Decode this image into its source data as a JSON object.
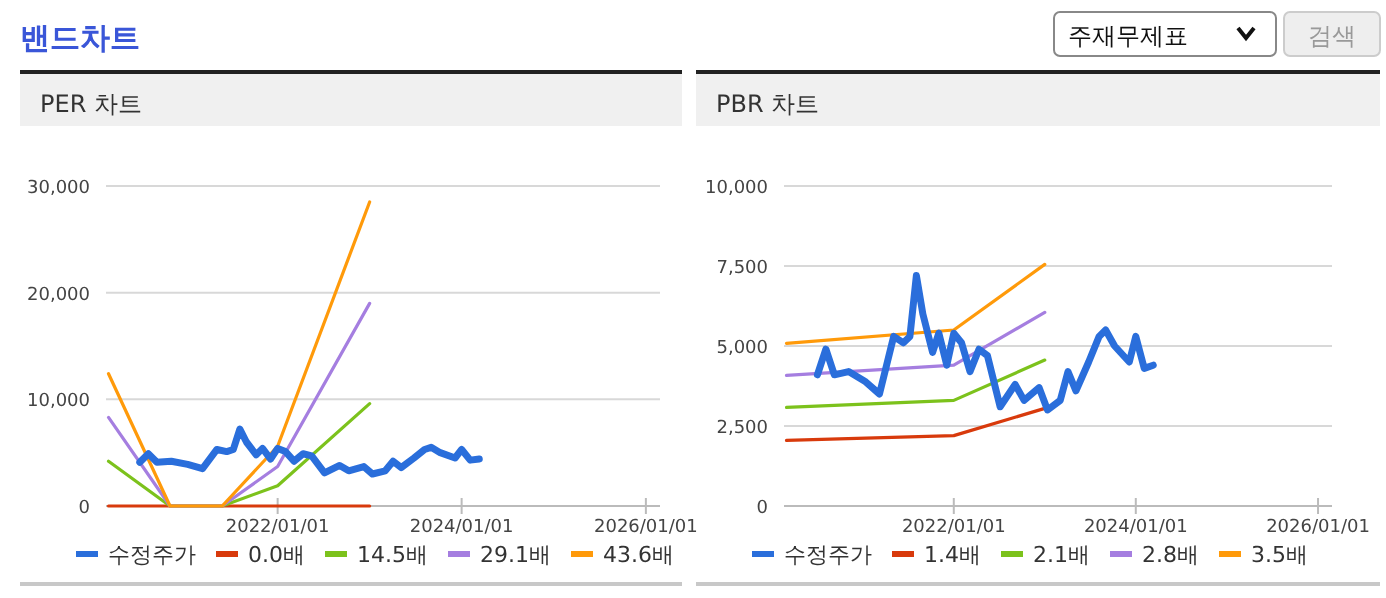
{
  "chart_data": [
    {
      "type": "other",
      "title": "밴드차트",
      "annotations": [
        "주재무제표",
        "검색"
      ]
    },
    {
      "type": "line",
      "title": "PER 차트",
      "xlim": [
        "2020-02-20",
        "2026-02-26"
      ],
      "xticks": [
        {
          "value": "2022-01-01",
          "label": "2022/01/01"
        },
        {
          "value": "2024-01-01",
          "label": "2024/01/01"
        },
        {
          "value": "2026-01-01",
          "label": "2026/01/01"
        }
      ],
      "ylim": [
        0,
        30000
      ],
      "yticks": [
        0,
        {
          "value": 10000,
          "label": "10,000"
        },
        {
          "value": 20000,
          "label": "20,000"
        },
        {
          "value": 30000,
          "label": "30,000"
        }
      ],
      "grid": "y",
      "legend": "bottom",
      "line_style": "solid",
      "marker": "none",
      "series": [
        {
          "name": "수정주가",
          "color": "#2a6edb",
          "x": [
            "2020-07-03",
            "2020-08-06",
            "2020-09-09",
            "2020-11-05",
            "2021-01-09",
            "2021-03-09",
            "2021-05-05",
            "2021-06-13",
            "2021-07-09",
            "2021-08-04",
            "2021-08-30",
            "2021-10-08",
            "2021-11-02",
            "2021-12-04",
            "2022-01-01",
            "2022-02-01",
            "2022-03-07",
            "2022-04-12",
            "2022-05-16",
            "2022-07-06",
            "2022-09-04",
            "2022-10-10",
            "2022-12-09",
            "2023-01-12",
            "2023-03-04",
            "2023-04-04",
            "2023-05-06",
            "2023-06-26",
            "2023-08-07",
            "2023-09-02",
            "2023-10-08",
            "2023-12-06",
            "2024-01-01",
            "2024-02-04",
            "2024-03-11"
          ],
          "values": [
            4100,
            4900,
            4100,
            4200,
            3900,
            3500,
            5300,
            5100,
            5300,
            7200,
            6000,
            4800,
            5400,
            4400,
            5400,
            5100,
            4200,
            4900,
            4700,
            3100,
            3800,
            3300,
            3700,
            3000,
            3300,
            4200,
            3600,
            4500,
            5300,
            5500,
            5000,
            4500,
            5300,
            4300,
            4400
          ]
        },
        {
          "name": "0.0배",
          "color": "#d83a0c",
          "x": [
            "2020-03-01",
            "2020-10-31",
            "2021-05-26",
            "2022-01-01",
            "2023-01-01"
          ],
          "values": [
            0,
            0,
            0,
            0,
            0
          ]
        },
        {
          "name": "14.5배",
          "color": "#7cc21c",
          "x": [
            "2020-03-01",
            "2020-10-31",
            "2021-05-26",
            "2022-01-01",
            "2023-01-01"
          ],
          "values": [
            4200,
            0,
            0,
            1900,
            9600
          ]
        },
        {
          "name": "29.1배",
          "color": "#a57ee0",
          "x": [
            "2020-03-01",
            "2020-10-31",
            "2021-05-26",
            "2022-01-01",
            "2023-01-01"
          ],
          "values": [
            8300,
            0,
            0,
            3700,
            19000
          ]
        },
        {
          "name": "43.6배",
          "color": "#ff9a0a",
          "x": [
            "2020-03-01",
            "2020-10-31",
            "2021-05-26",
            "2022-01-01",
            "2023-01-01"
          ],
          "values": [
            12400,
            0,
            0,
            5600,
            28500
          ]
        }
      ]
    },
    {
      "type": "line",
      "title": "PBR 차트",
      "xlim": [
        "2020-02-20",
        "2026-02-26"
      ],
      "xticks": [
        {
          "value": "2022-01-01",
          "label": "2022/01/01"
        },
        {
          "value": "2024-01-01",
          "label": "2024/01/01"
        },
        {
          "value": "2026-01-01",
          "label": "2026/01/01"
        }
      ],
      "ylim": [
        0,
        10000
      ],
      "yticks": [
        0,
        {
          "value": 2500,
          "label": "2,500"
        },
        {
          "value": 5000,
          "label": "5,000"
        },
        {
          "value": 7500,
          "label": "7,500"
        },
        {
          "value": 10000,
          "label": "10,000"
        }
      ],
      "grid": "y",
      "legend": "bottom",
      "line_style": "solid",
      "marker": "none",
      "series": [
        {
          "name": "수정주가",
          "color": "#2a6edb",
          "x": [
            "2020-07-03",
            "2020-08-06",
            "2020-09-09",
            "2020-11-05",
            "2021-01-09",
            "2021-03-09",
            "2021-05-05",
            "2021-06-13",
            "2021-07-09",
            "2021-08-04",
            "2021-08-30",
            "2021-10-08",
            "2021-11-02",
            "2021-12-04",
            "2022-01-01",
            "2022-02-01",
            "2022-03-07",
            "2022-04-12",
            "2022-05-16",
            "2022-07-06",
            "2022-09-04",
            "2022-10-10",
            "2022-12-09",
            "2023-01-12",
            "2023-03-04",
            "2023-04-04",
            "2023-05-06",
            "2023-06-26",
            "2023-08-07",
            "2023-09-02",
            "2023-10-08",
            "2023-12-06",
            "2024-01-01",
            "2024-02-04",
            "2024-03-11"
          ],
          "values": [
            4100,
            4900,
            4100,
            4200,
            3900,
            3500,
            5300,
            5100,
            5300,
            7200,
            6000,
            4800,
            5400,
            4400,
            5400,
            5100,
            4200,
            4900,
            4700,
            3100,
            3800,
            3300,
            3700,
            3000,
            3300,
            4200,
            3600,
            4500,
            5300,
            5500,
            5000,
            4500,
            5300,
            4300,
            4400
          ]
        },
        {
          "name": "1.4배",
          "color": "#d83a0c",
          "x": [
            "2020-03-01",
            "2022-01-01",
            "2023-01-01"
          ],
          "values": [
            2050,
            2200,
            3050
          ]
        },
        {
          "name": "2.1배",
          "color": "#7cc21c",
          "x": [
            "2020-03-01",
            "2022-01-01",
            "2023-01-01"
          ],
          "values": [
            3080,
            3300,
            4560
          ]
        },
        {
          "name": "2.8배",
          "color": "#a57ee0",
          "x": [
            "2020-03-01",
            "2022-01-01",
            "2023-01-01"
          ],
          "values": [
            4080,
            4400,
            6050
          ]
        },
        {
          "name": "3.5배",
          "color": "#ff9a0a",
          "x": [
            "2020-03-01",
            "2022-01-01",
            "2023-01-01"
          ],
          "values": [
            5080,
            5500,
            7550
          ]
        }
      ]
    }
  ]
}
